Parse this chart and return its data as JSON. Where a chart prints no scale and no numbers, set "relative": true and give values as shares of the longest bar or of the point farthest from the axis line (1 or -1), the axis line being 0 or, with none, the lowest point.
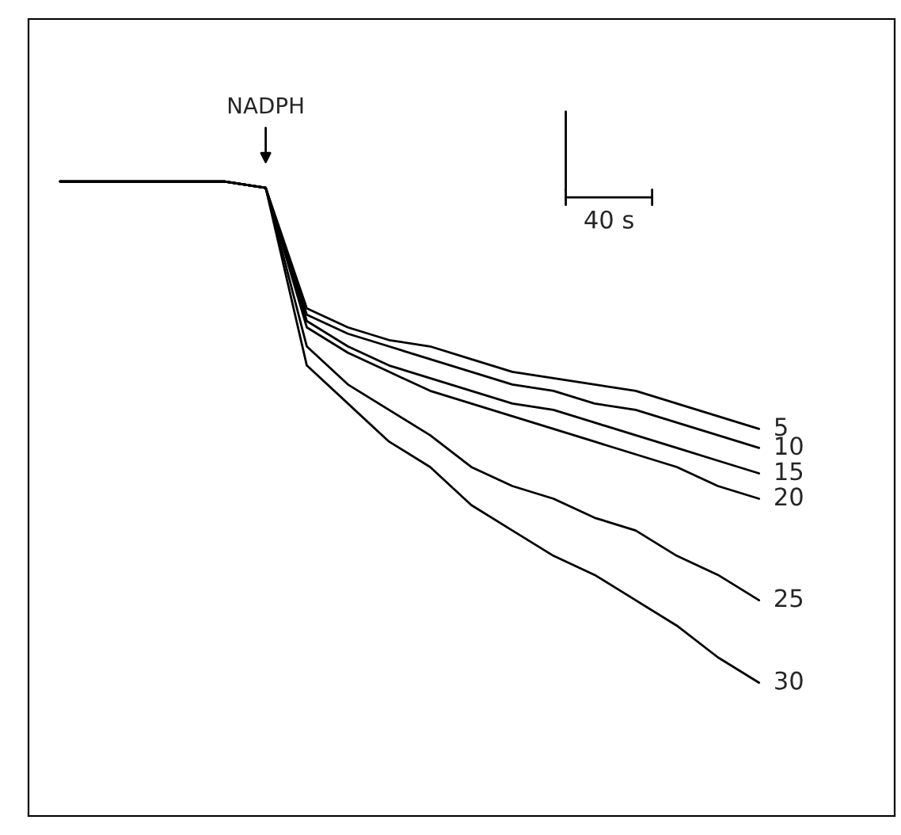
{
  "chart_data": {
    "type": "line",
    "relative": true,
    "legend": false,
    "marker": "none",
    "line_style": "solid",
    "categories": [
      null,
      null,
      null,
      null,
      null,
      null,
      null,
      null,
      null,
      null,
      null,
      null,
      null,
      null,
      null,
      null,
      null,
      null
    ],
    "annotations": [
      "NADPH",
      "40 s"
    ],
    "series": [
      {
        "name": "5",
        "color": "#000000",
        "values": [
          1,
          1,
          1,
          1,
          1,
          0.99,
          0.8,
          0.77,
          0.75,
          0.74,
          0.72,
          0.7,
          0.69,
          0.68,
          0.67,
          0.65,
          0.63,
          0.61
        ]
      },
      {
        "name": "10",
        "color": "#000000",
        "values": [
          1,
          1,
          1,
          1,
          1,
          0.99,
          0.79,
          0.76,
          0.74,
          0.72,
          0.7,
          0.68,
          0.67,
          0.65,
          0.64,
          0.62,
          0.6,
          0.58
        ]
      },
      {
        "name": "15",
        "color": "#000000",
        "values": [
          1,
          1,
          1,
          1,
          1,
          0.99,
          0.78,
          0.74,
          0.71,
          0.69,
          0.67,
          0.65,
          0.64,
          0.62,
          0.6,
          0.58,
          0.56,
          0.54
        ]
      },
      {
        "name": "20",
        "color": "#000000",
        "values": [
          1,
          1,
          1,
          1,
          1,
          0.99,
          0.77,
          0.73,
          0.7,
          0.67,
          0.65,
          0.63,
          0.61,
          0.59,
          0.57,
          0.55,
          0.52,
          0.5
        ]
      },
      {
        "name": "25",
        "color": "#000000",
        "values": [
          1,
          1,
          1,
          1,
          1,
          0.99,
          0.74,
          0.68,
          0.64,
          0.6,
          0.55,
          0.52,
          0.5,
          0.47,
          0.45,
          0.41,
          0.38,
          0.34
        ]
      },
      {
        "name": "30",
        "color": "#000000",
        "values": [
          1,
          1,
          1,
          1,
          1,
          0.99,
          0.71,
          0.65,
          0.59,
          0.55,
          0.49,
          0.45,
          0.41,
          0.38,
          0.34,
          0.3,
          0.25,
          0.21
        ]
      }
    ]
  }
}
